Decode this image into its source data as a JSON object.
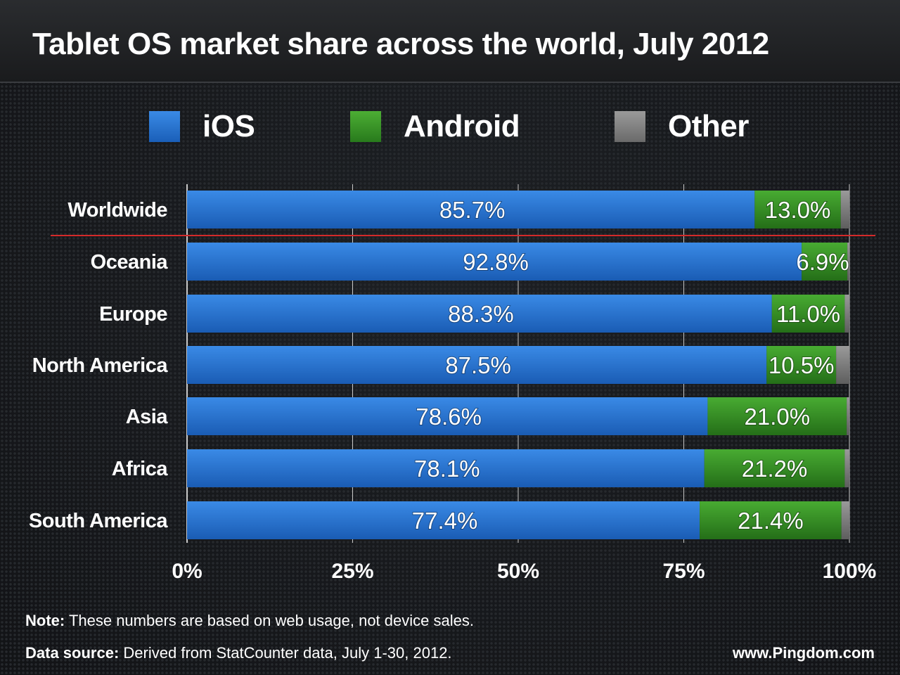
{
  "title": "Tablet OS market share across the world, July 2012",
  "legend": [
    {
      "label": "iOS",
      "color": "#2a78d6"
    },
    {
      "label": "Android",
      "color": "#3a9a2a"
    },
    {
      "label": "Other",
      "color": "#8a8a8a"
    }
  ],
  "footer": {
    "note_label": "Note:",
    "note_text": "These numbers are based on web usage, not device sales.",
    "source_label": "Data source:",
    "source_text": "Derived from StatCounter data, July 1-30, 2012.",
    "site": "www.Pingdom.com"
  },
  "chart_data": {
    "type": "bar",
    "orientation": "horizontal",
    "stacked": true,
    "title": "Tablet OS market share across the world, July 2012",
    "categories": [
      "Worldwide",
      "Oceania",
      "Europe",
      "North America",
      "Asia",
      "Africa",
      "South America"
    ],
    "series": [
      {
        "name": "iOS",
        "values": [
          85.7,
          92.8,
          88.3,
          87.5,
          78.6,
          78.1,
          77.4
        ],
        "labels": [
          "85.7%",
          "92.8%",
          "88.3%",
          "87.5%",
          "78.6%",
          "78.1%",
          "77.4%"
        ]
      },
      {
        "name": "Android",
        "values": [
          13.0,
          6.9,
          11.0,
          10.5,
          21.0,
          21.2,
          21.4
        ],
        "labels": [
          "13.0%",
          "6.9%",
          "11.0%",
          "10.5%",
          "21.0%",
          "21.2%",
          "21.4%"
        ]
      },
      {
        "name": "Other",
        "values": [
          1.3,
          0.3,
          0.7,
          2.0,
          0.4,
          0.7,
          1.2
        ]
      }
    ],
    "xlim": [
      0,
      100
    ],
    "xticks": [
      0,
      25,
      50,
      75,
      100
    ],
    "xtick_labels": [
      "0%",
      "25%",
      "50%",
      "75%",
      "100%"
    ],
    "grid": true,
    "legend_position": "top"
  }
}
